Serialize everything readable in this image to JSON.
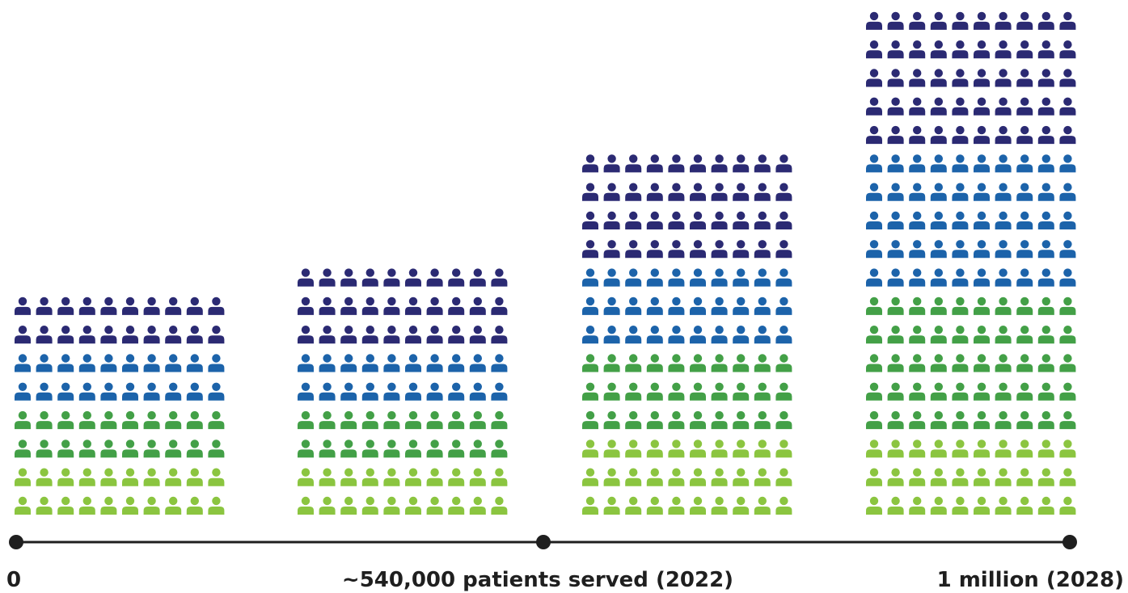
{
  "chart_data": {
    "type": "pictogram",
    "columns": [
      {
        "stack": [
          {
            "color_key": "light_green",
            "rows": 2
          },
          {
            "color_key": "green",
            "rows": 2
          },
          {
            "color_key": "blue",
            "rows": 2
          },
          {
            "color_key": "navy",
            "rows": 2
          }
        ]
      },
      {
        "stack": [
          {
            "color_key": "light_green",
            "rows": 2
          },
          {
            "color_key": "green",
            "rows": 2
          },
          {
            "color_key": "blue",
            "rows": 2
          },
          {
            "color_key": "navy",
            "rows": 3
          }
        ]
      },
      {
        "stack": [
          {
            "color_key": "light_green",
            "rows": 3
          },
          {
            "color_key": "green",
            "rows": 3
          },
          {
            "color_key": "blue",
            "rows": 3
          },
          {
            "color_key": "navy",
            "rows": 4
          }
        ]
      },
      {
        "stack": [
          {
            "color_key": "light_green",
            "rows": 3
          },
          {
            "color_key": "green",
            "rows": 5
          },
          {
            "color_key": "blue",
            "rows": 5
          },
          {
            "color_key": "navy",
            "rows": 5
          }
        ]
      }
    ],
    "icons_per_row": 10,
    "timeline": {
      "points": [
        {
          "label": "0"
        },
        {
          "label": "~540,000 patients served (2022)"
        },
        {
          "label": "1 million (2028)"
        }
      ]
    }
  },
  "colors": {
    "navy": "#2b2a73",
    "blue": "#1c63aa",
    "green": "#43a047",
    "light_green": "#8bc540",
    "axis": "#1f1f1f"
  },
  "icon_name": "person-icon"
}
